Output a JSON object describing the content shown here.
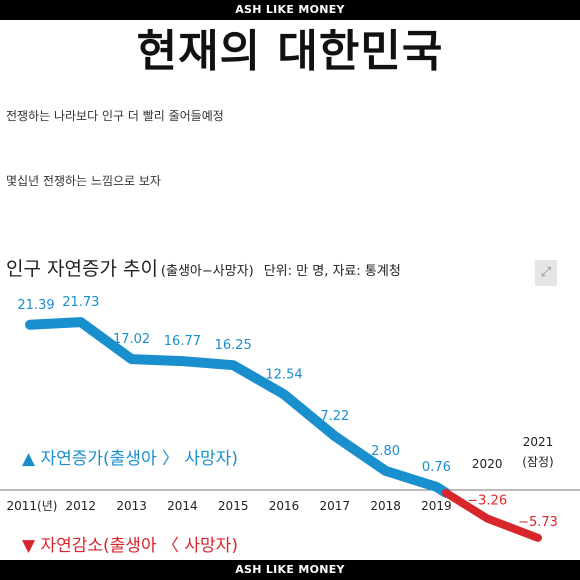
{
  "brand": {
    "top_banner": "ASH LIKE MONEY",
    "bottom_banner": "ASH LIKE MONEY"
  },
  "headline": "현재의 대한민국",
  "caption": {
    "line1": "전쟁하는 나라보다 인구 더 빨리 줄어들예정",
    "line2": "몇십년 전쟁하는 느낌으로 보자"
  },
  "colors": {
    "positive": "#1a8fce",
    "negative": "#d9262c"
  },
  "icons": {
    "expand": "expand-icon"
  },
  "chart_data": {
    "type": "line",
    "title": "인구 자연증가 추이",
    "subtitle": "(출생아−사망자)",
    "source": "단위: 만 명, 자료: 통계청",
    "unit": "만 명",
    "categories": [
      "2011(년)",
      "2012",
      "2013",
      "2014",
      "2015",
      "2016",
      "2017",
      "2018",
      "2019",
      "2020",
      "2021 (잠정)"
    ],
    "values": [
      21.39,
      21.73,
      17.02,
      16.77,
      16.25,
      12.54,
      7.22,
      2.8,
      0.76,
      -3.26,
      -5.73
    ],
    "value_labels": [
      "21.39",
      "21.73",
      "17.02",
      "16.77",
      "16.25",
      "12.54",
      "7.22",
      "2.80",
      "0.76",
      "−3.26",
      "−5.73"
    ],
    "legend": {
      "positive": "▲ 자연증가(출생아 〉 사망자)",
      "negative": "▼ 자연감소(출생아 〈 사망자)"
    },
    "ylim": [
      -6,
      22
    ],
    "grid": false
  }
}
